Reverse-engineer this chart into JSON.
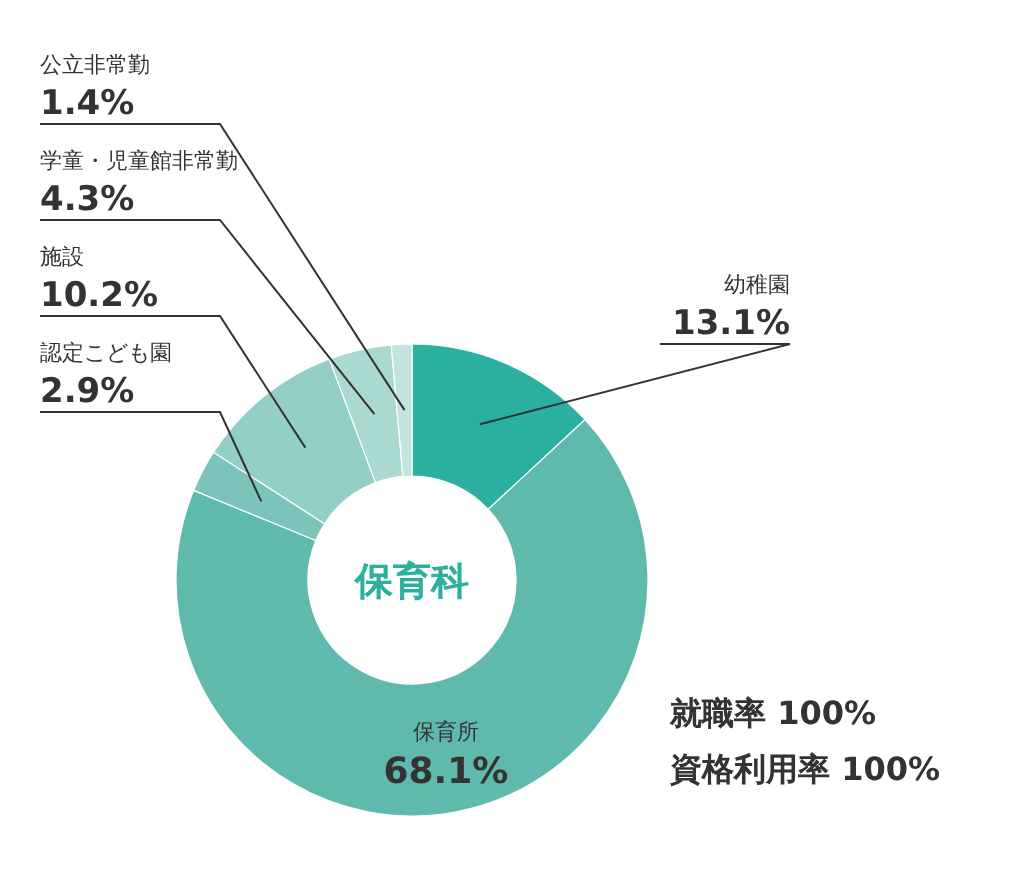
{
  "chart_data": {
    "type": "donut",
    "title": "保育科",
    "categories": [
      "幼稚園",
      "保育所",
      "認定こども園",
      "施設",
      "学童・児童館非常勤",
      "公立非常勤"
    ],
    "values": [
      13.1,
      68.1,
      2.9,
      10.2,
      4.3,
      1.4
    ],
    "value_labels": [
      "13.1%",
      "68.1%",
      "2.9%",
      "10.2%",
      "4.3%",
      "1.4%"
    ],
    "colors": [
      "#2bb0a0",
      "#5fb9ad",
      "#7cc4ba",
      "#93cfc6",
      "#aad9d2",
      "#c2e3de"
    ],
    "annotations": [
      "就職率 100%",
      "資格利用率 100%"
    ]
  }
}
